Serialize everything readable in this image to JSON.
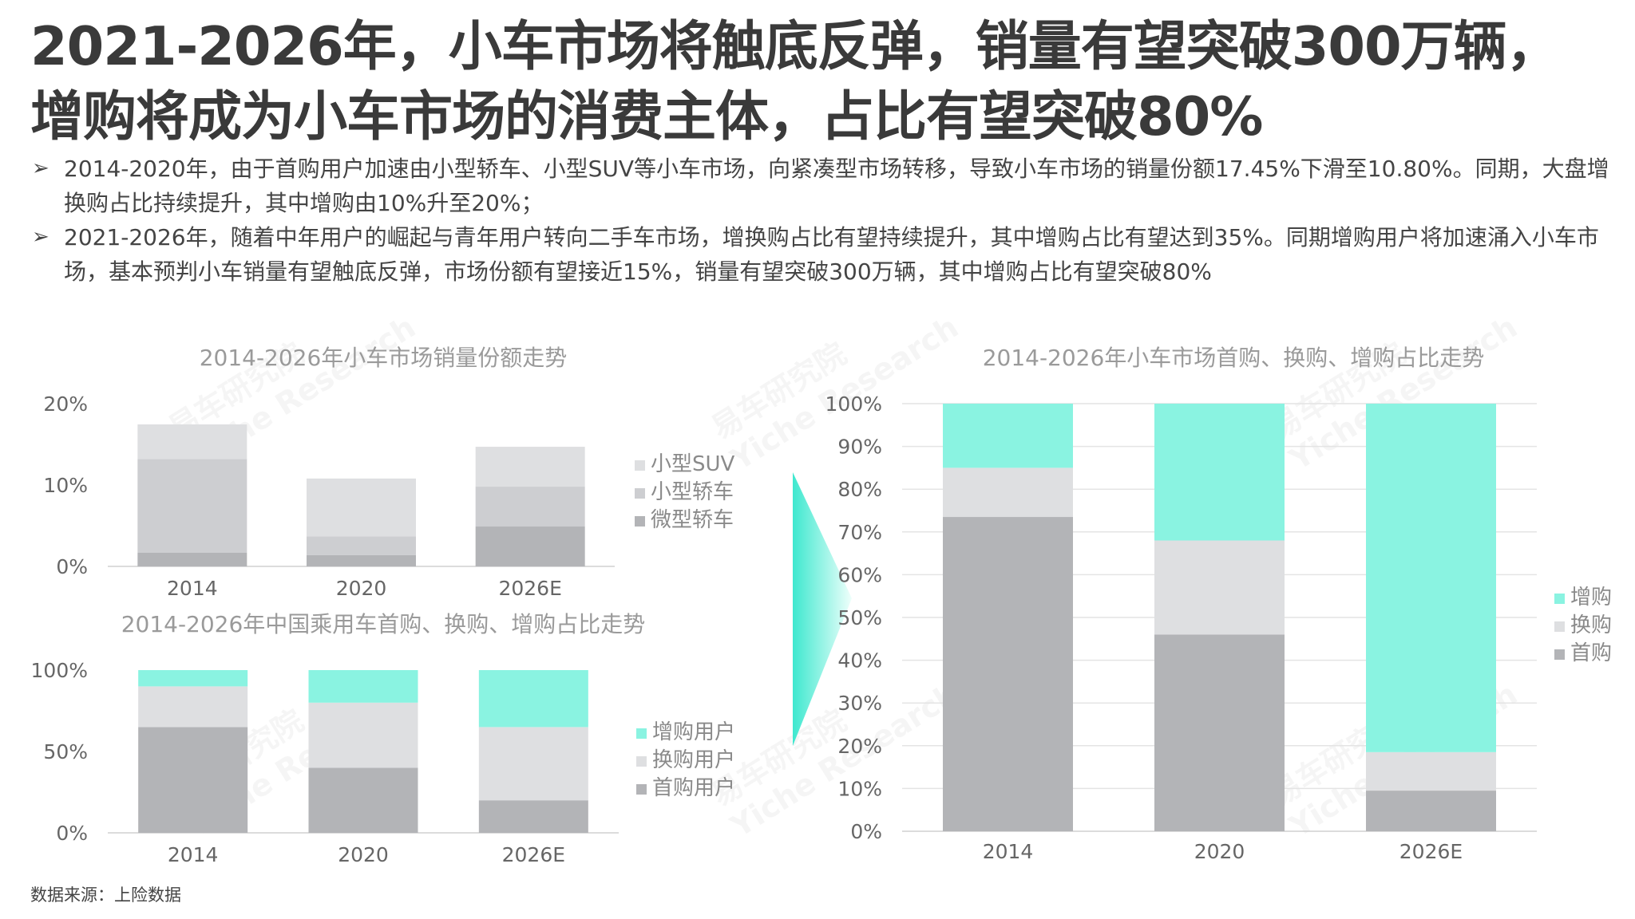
{
  "title": {
    "line1": "2021-2026年，小车市场将触底反弹，销量有望突破300万辆，",
    "line2": "增购将成为小车市场的消费主体，占比有望突破80%"
  },
  "bullets": [
    {
      "mark": "➢",
      "text": "2014-2020年，由于首购用户加速由小型轿车、小型SUV等小车市场，向紧凑型市场转移，导致小车市场的销量份额17.45%下滑至10.80%。同期，大盘增换购占比持续提升，其中增购由10%升至20%；"
    },
    {
      "mark": "➢",
      "text": "2021-2026年，随着中年用户的崛起与青年用户转向二手车市场，增换购占比有望持续提升，其中增购占比有望达到35%。同期增购用户将加速涌入小车市场，基本预判小车销量有望触底反弹，市场份额有望接近15%，销量有望突破300万辆，其中增购占比有望突破80%"
    }
  ],
  "source": "数据来源：上险数据",
  "watermark": {
    "cn": "易车研究院",
    "en": "Yiche Research"
  },
  "colors": {
    "teal": "#8AF3E1",
    "light": "#DEDFE1",
    "mid": "#CDCED1",
    "dark": "#B3B4B7",
    "axis": "#666666",
    "grid": "#E4E4E4"
  },
  "chart_data": [
    {
      "type": "bar",
      "stacked": true,
      "title": "2014-2026年小车市场销量份额走势",
      "categories": [
        "2014",
        "2020",
        "2026E"
      ],
      "yticks": [
        "0%",
        "10%",
        "20%"
      ],
      "ylim": [
        0,
        20
      ],
      "series": [
        {
          "name": "微型轿车",
          "values": [
            1.7,
            1.4,
            4.9
          ],
          "color": "#B3B4B7"
        },
        {
          "name": "小型轿车",
          "values": [
            11.5,
            2.3,
            4.9
          ],
          "color": "#CDCED1"
        },
        {
          "name": "小型SUV",
          "values": [
            4.25,
            7.1,
            4.9
          ],
          "color": "#DEDFE1"
        }
      ],
      "legend": "right"
    },
    {
      "type": "bar",
      "stacked": true,
      "title": "2014-2026年中国乘用车首购、换购、增购占比走势",
      "categories": [
        "2014",
        "2020",
        "2026E"
      ],
      "yticks": [
        "0%",
        "50%",
        "100%"
      ],
      "ylim": [
        0,
        100
      ],
      "series": [
        {
          "name": "首购用户",
          "values": [
            65,
            40,
            20
          ],
          "color": "#B3B4B7"
        },
        {
          "name": "换购用户",
          "values": [
            25,
            40,
            45
          ],
          "color": "#DEDFE1"
        },
        {
          "name": "增购用户",
          "values": [
            10,
            20,
            35
          ],
          "color": "#8AF3E1"
        }
      ],
      "legend": "right"
    },
    {
      "type": "bar",
      "stacked": true,
      "title": "2014-2026年小车市场首购、换购、增购占比走势",
      "categories": [
        "2014",
        "2020",
        "2026E"
      ],
      "yticks": [
        "0%",
        "10%",
        "20%",
        "30%",
        "40%",
        "50%",
        "60%",
        "70%",
        "80%",
        "90%",
        "100%"
      ],
      "ylim": [
        0,
        100
      ],
      "series": [
        {
          "name": "首购",
          "values": [
            73.5,
            46,
            9.5
          ],
          "color": "#B3B4B7"
        },
        {
          "name": "换购",
          "values": [
            11.5,
            22,
            9
          ],
          "color": "#DEDFE1"
        },
        {
          "name": "增购",
          "values": [
            15,
            32,
            81.5
          ],
          "color": "#8AF3E1"
        }
      ],
      "legend": "right"
    }
  ]
}
